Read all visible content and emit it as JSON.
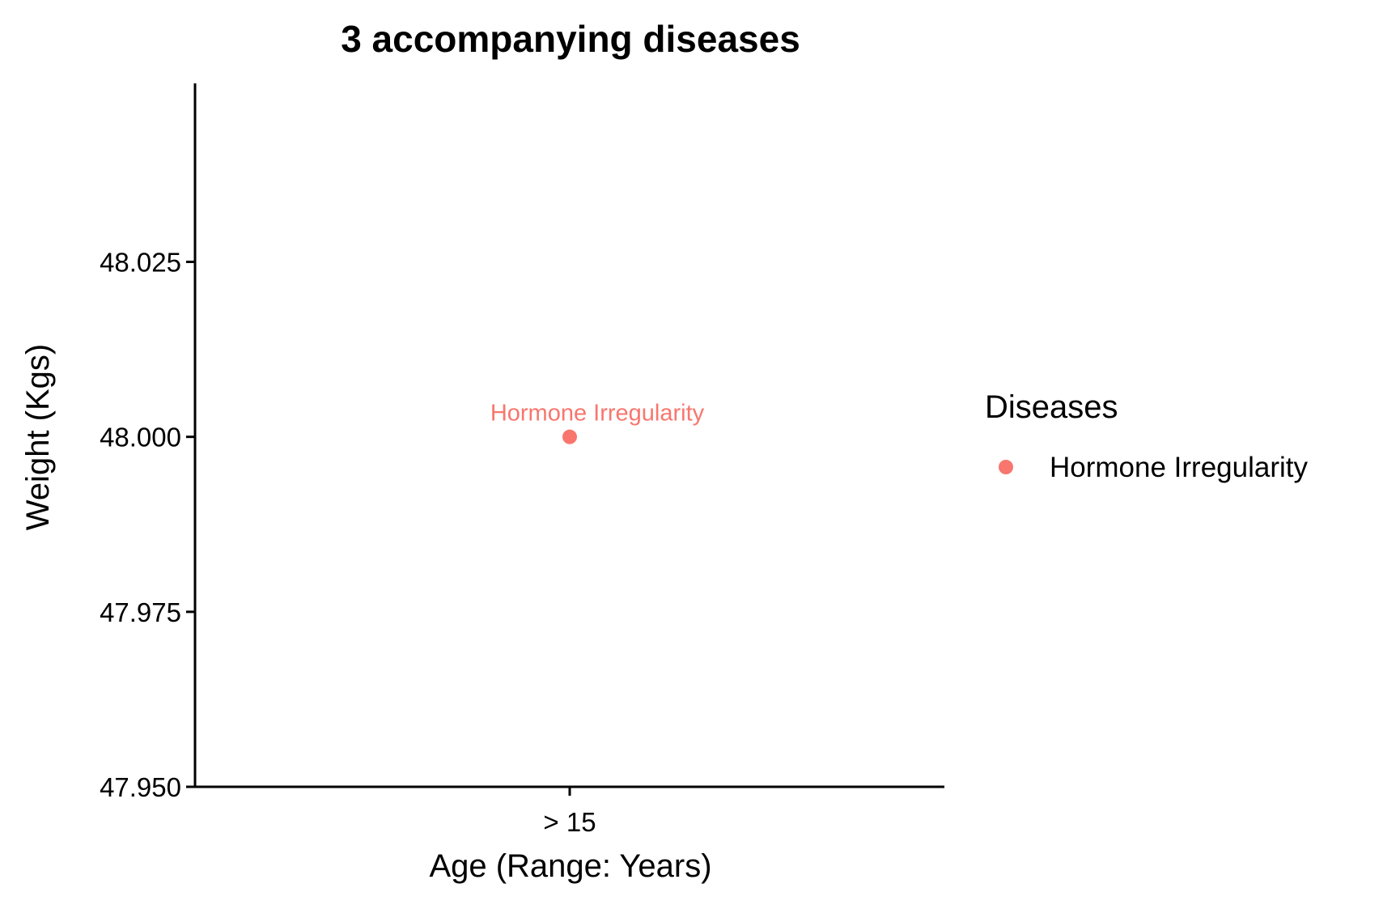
{
  "chart_data": {
    "type": "scatter",
    "title": "3 accompanying diseases",
    "xlabel": "Age (Range: Years)",
    "ylabel": "Weight (Kgs)",
    "categories": [
      "> 15"
    ],
    "yticks": [
      "47.950",
      "47.975",
      "48.000",
      "48.025"
    ],
    "ylim": [
      47.95,
      48.0505
    ],
    "grid": false,
    "legend": {
      "title": "Diseases",
      "position": "right",
      "entries": [
        {
          "label": "Hormone Irregularity",
          "color": "#F8766D"
        }
      ]
    },
    "series": [
      {
        "name": "Hormone Irregularity",
        "color": "#F8766D",
        "points": [
          {
            "x": "> 15",
            "y": 48.0,
            "label": "Hormone Irregularity"
          }
        ]
      }
    ]
  }
}
